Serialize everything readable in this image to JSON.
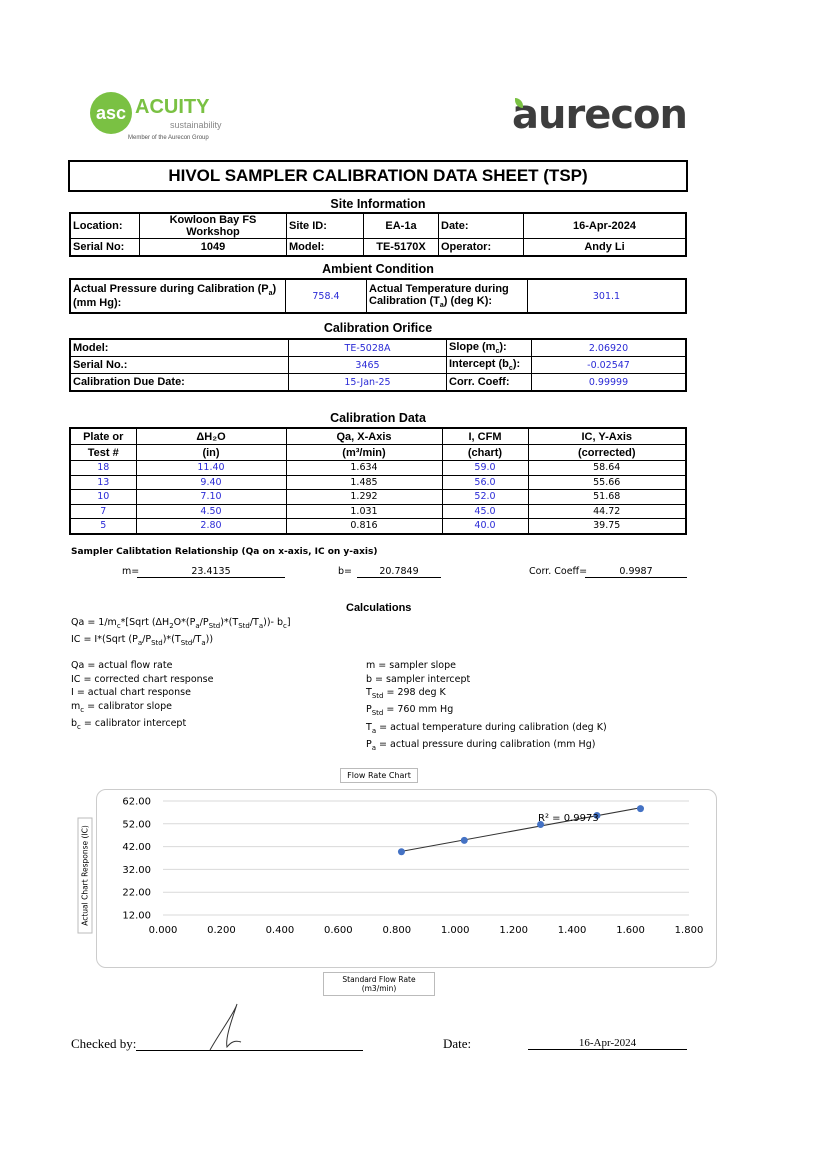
{
  "logos": {
    "acuity": "ACUITY",
    "acuity_sub": "sustainability",
    "acuity_member": "Member of the Aurecon Group",
    "aurecon": "aurecon"
  },
  "title": "HIVOL SAMPLER CALIBRATION  DATA SHEET (TSP)",
  "site": {
    "heading": "Site Information",
    "location_label": "Location:",
    "location": "Kowloon Bay FS Workshop",
    "site_id_label": "Site ID:",
    "site_id": "EA-1a",
    "date_label": "Date:",
    "date": "16-Apr-2024",
    "serial_label": "Serial No:",
    "serial": "1049",
    "model_label": "Model:",
    "model": "TE-5170X",
    "operator_label": "Operator:",
    "operator": "Andy Li"
  },
  "ambient": {
    "heading": "Ambient Condition",
    "pressure_label": [
      {
        "t": "Actual Pressure during Calibration (P"
      },
      {
        "s": "a"
      },
      {
        "t": ")"
      },
      {
        "br": 1
      },
      {
        "t": "(mm Hg):"
      }
    ],
    "pressure": "758.4",
    "temp_label": [
      {
        "t": "Actual Temperature during"
      },
      {
        "br": 1
      },
      {
        "t": "Calibration (T"
      },
      {
        "s": "a"
      },
      {
        "t": ") (deg K):"
      }
    ],
    "temp": "301.1"
  },
  "orifice": {
    "heading": "Calibration Orifice",
    "model_label": "Model:",
    "model": "TE-5028A",
    "slope_label": [
      {
        "t": "Slope (m"
      },
      {
        "s": "c"
      },
      {
        "t": "):"
      }
    ],
    "slope": "2.06920",
    "serial_label": "Serial No.:",
    "serial": "3465",
    "intercept_label": [
      {
        "t": "Intercept (b"
      },
      {
        "s": "c"
      },
      {
        "t": "):"
      }
    ],
    "intercept": "-0.02547",
    "due_label": "Calibration Due Date:",
    "due": "15-Jan-25",
    "corr_label": "Corr. Coeff:",
    "corr": "0.99999"
  },
  "calibration": {
    "heading": "Calibration Data",
    "headers1": [
      "Plate or",
      "ΔH₂O",
      "Qa, X-Axis",
      "I, CFM",
      "IC, Y-Axis"
    ],
    "headers2": [
      "Test #",
      "(in)",
      "(m³/min)",
      "(chart)",
      "(corrected)"
    ],
    "rows": [
      [
        "18",
        "11.40",
        "1.634",
        "59.0",
        "58.64"
      ],
      [
        "13",
        "9.40",
        "1.485",
        "56.0",
        "55.66"
      ],
      [
        "10",
        "7.10",
        "1.292",
        "52.0",
        "51.68"
      ],
      [
        "7",
        "4.50",
        "1.031",
        "45.0",
        "44.72"
      ],
      [
        "5",
        "2.80",
        "0.816",
        "40.0",
        "39.75"
      ]
    ]
  },
  "relationship": {
    "label": "Sampler Calibtation Relationship (Qa on x-axis, IC on y-axis)",
    "m_label": "m=",
    "m": "23.4135",
    "b_label": "b=",
    "b": "20.7849",
    "corr_label": "Corr. Coeff=",
    "corr": "0.9987"
  },
  "calculations": {
    "heading": "Calculations",
    "formulas": [
      [
        {
          "t": "Qa = 1/m"
        },
        {
          "s": "c"
        },
        {
          "t": "*[Sqrt (ΔH"
        },
        {
          "s": "2"
        },
        {
          "t": "O*(P"
        },
        {
          "s": "a"
        },
        {
          "t": "/P"
        },
        {
          "s": "Std"
        },
        {
          "t": ")*(T"
        },
        {
          "s": "Std"
        },
        {
          "t": "/T"
        },
        {
          "s": "a"
        },
        {
          "t": "))- b"
        },
        {
          "s": "c"
        },
        {
          "t": "]"
        }
      ],
      [
        {
          "t": "IC = I*(Sqrt (P"
        },
        {
          "s": "a"
        },
        {
          "t": "/P"
        },
        {
          "s": "Std"
        },
        {
          "t": ")*(T"
        },
        {
          "s": "Std"
        },
        {
          "t": "/T"
        },
        {
          "s": "a"
        },
        {
          "t": "))"
        }
      ]
    ],
    "left": [
      [
        {
          "t": "Qa = actual flow rate"
        }
      ],
      [
        {
          "t": "IC = corrected chart response"
        }
      ],
      [
        {
          "t": "I = actual chart response"
        }
      ],
      [
        {
          "t": "m"
        },
        {
          "s": "c"
        },
        {
          "t": "  = calibrator slope"
        }
      ],
      [
        {
          "t": "b"
        },
        {
          "s": "c"
        },
        {
          "t": "  = calibrator intercept"
        }
      ]
    ],
    "right": [
      [
        {
          "t": "m = sampler slope"
        }
      ],
      [
        {
          "t": "b  = sampler intercept"
        }
      ],
      [
        {
          "t": "T"
        },
        {
          "s": "Std"
        },
        {
          "t": " = 298 deg K"
        }
      ],
      [
        {
          "t": "P"
        },
        {
          "s": "Std"
        },
        {
          "t": " = 760 mm Hg"
        }
      ],
      [
        {
          "t": "T"
        },
        {
          "s": "a"
        },
        {
          "t": " = actual temperature during calibration (deg K)"
        }
      ],
      [
        {
          "t": "P"
        },
        {
          "s": "a"
        },
        {
          "t": " = actual pressure during calibration (mm Hg)"
        }
      ]
    ]
  },
  "chart_data": {
    "type": "scatter",
    "title": "Flow Rate Chart",
    "xlabel": "Standard Flow Rate (m3/min)",
    "ylabel": "Actual Chart Response (IC)",
    "x": [
      1.634,
      1.485,
      1.292,
      1.031,
      0.816
    ],
    "y": [
      58.64,
      55.66,
      51.68,
      44.72,
      39.75
    ],
    "xlim": [
      0,
      1.8
    ],
    "ylim": [
      12,
      62
    ],
    "xticks": [
      "0.000",
      "0.200",
      "0.400",
      "0.600",
      "0.800",
      "1.000",
      "1.200",
      "1.400",
      "1.600",
      "1.800"
    ],
    "yticks": [
      "12.00",
      "22.00",
      "32.00",
      "42.00",
      "52.00",
      "62.00"
    ],
    "trendline": true,
    "annotation": "R² = 0.9973",
    "grid": "horizontal",
    "point_color": "#4472c4"
  },
  "footer": {
    "checked_label": "Checked by:",
    "date_label": "Date:",
    "date": "16-Apr-2024"
  }
}
